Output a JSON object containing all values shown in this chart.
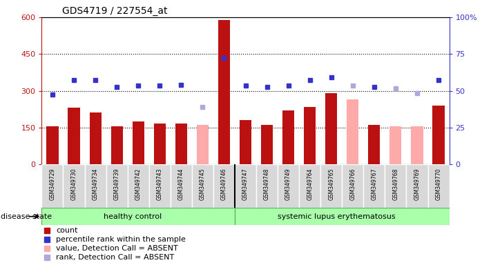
{
  "title": "GDS4719 / 227554_at",
  "samples": [
    "GSM349729",
    "GSM349730",
    "GSM349734",
    "GSM349739",
    "GSM349742",
    "GSM349743",
    "GSM349744",
    "GSM349745",
    "GSM349746",
    "GSM349747",
    "GSM349748",
    "GSM349749",
    "GSM349764",
    "GSM349765",
    "GSM349766",
    "GSM349767",
    "GSM349768",
    "GSM349769",
    "GSM349770"
  ],
  "counts": [
    155,
    230,
    210,
    155,
    175,
    165,
    165,
    null,
    590,
    180,
    160,
    220,
    235,
    290,
    null,
    160,
    null,
    null,
    240
  ],
  "absent_counts": [
    null,
    null,
    null,
    null,
    null,
    null,
    null,
    160,
    null,
    null,
    null,
    null,
    null,
    null,
    265,
    null,
    155,
    155,
    null
  ],
  "ranks": [
    285,
    345,
    345,
    315,
    320,
    320,
    325,
    null,
    435,
    320,
    315,
    320,
    345,
    355,
    null,
    315,
    null,
    null,
    345
  ],
  "absent_ranks": [
    null,
    null,
    null,
    null,
    null,
    null,
    null,
    235,
    null,
    null,
    null,
    null,
    null,
    null,
    320,
    null,
    310,
    290,
    null
  ],
  "group_boundary": 9,
  "group1_label": "healthy control",
  "group2_label": "systemic lupus erythematosus",
  "disease_state_label": "disease state",
  "left_ylim": [
    0,
    600
  ],
  "left_yticks": [
    0,
    150,
    300,
    450,
    600
  ],
  "right_ylim": [
    0,
    100
  ],
  "right_yticks": [
    0,
    25,
    50,
    75,
    100
  ],
  "right_yticklabels": [
    "0",
    "25",
    "50",
    "75",
    "100%"
  ],
  "bar_color": "#bb1111",
  "absent_bar_color": "#ffaaaa",
  "rank_color": "#3333cc",
  "absent_rank_color": "#aaaadd",
  "label_bg": "#d8d8d8",
  "group_bg": "#aaffaa",
  "legend_items": [
    {
      "label": "count",
      "color": "#bb1111"
    },
    {
      "label": "percentile rank within the sample",
      "color": "#3333cc"
    },
    {
      "label": "value, Detection Call = ABSENT",
      "color": "#ffaaaa"
    },
    {
      "label": "rank, Detection Call = ABSENT",
      "color": "#aaaadd"
    }
  ]
}
